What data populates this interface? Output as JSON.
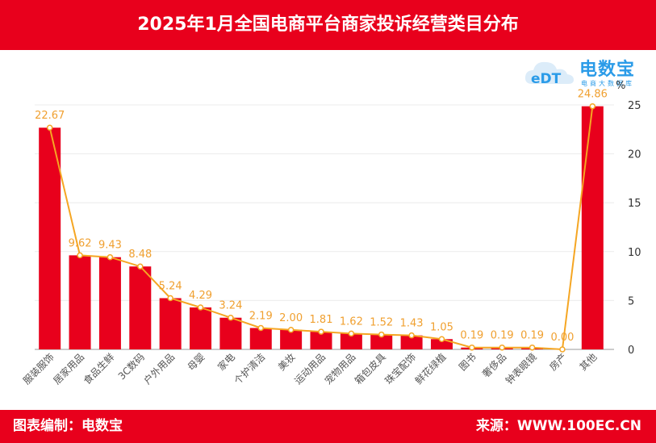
{
  "header": {
    "title": "2025年1月全国电商平台商家投诉经营类目分布"
  },
  "footer": {
    "left": "图表编制：电数宝",
    "right": "来源：WWW.100EC.CN"
  },
  "logo": {
    "main": "电数宝",
    "sub": "电商大数据库",
    "mark": "eDT"
  },
  "colors": {
    "bar": "#e8001c",
    "line": "#f5a623",
    "label": "#f0a030",
    "header": "#e8001c"
  },
  "chart_data": {
    "type": "bar",
    "categories": [
      "服装服饰",
      "居家用品",
      "食品生鲜",
      "3C数码",
      "户外用品",
      "母婴",
      "家电",
      "个护清洁",
      "美妆",
      "运动用品",
      "宠物用品",
      "箱包皮具",
      "珠宝配饰",
      "鲜花绿植",
      "图书",
      "奢侈品",
      "钟表眼镜",
      "房产",
      "其他"
    ],
    "series": [
      {
        "type": "bar",
        "values": [
          22.67,
          9.62,
          9.43,
          8.48,
          5.24,
          4.29,
          3.24,
          2.19,
          2.0,
          1.81,
          1.62,
          1.52,
          1.43,
          1.05,
          0.19,
          0.19,
          0.19,
          0.0,
          24.86
        ]
      },
      {
        "type": "line",
        "values": [
          22.67,
          9.62,
          9.43,
          8.48,
          5.24,
          4.29,
          3.24,
          2.19,
          2.0,
          1.81,
          1.62,
          1.52,
          1.43,
          1.05,
          0.19,
          0.19,
          0.19,
          0.0,
          24.86
        ]
      }
    ],
    "data_labels": [
      "22.67",
      "9.62",
      "9.43",
      "8.48",
      "5.24",
      "4.29",
      "3.24",
      "2.19",
      "2.00",
      "1.81",
      "1.62",
      "1.52",
      "1.43",
      "1.05",
      "0.19",
      "0.19",
      "0.19",
      "0.00",
      "24.86"
    ],
    "y_axis": {
      "unit": "%",
      "ticks": [
        "0",
        "5",
        "10",
        "15",
        "20",
        "25"
      ],
      "position": "right"
    },
    "ylim": [
      0,
      25
    ],
    "grid": true
  }
}
